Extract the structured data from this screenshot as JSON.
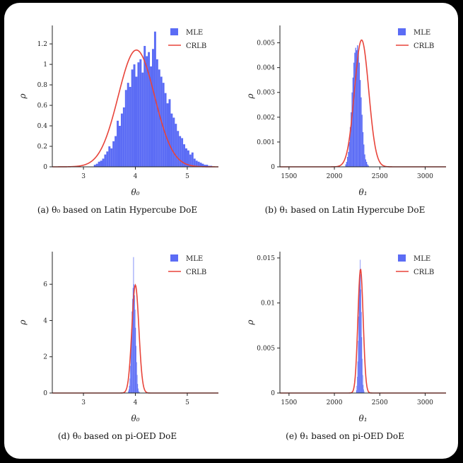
{
  "colors": {
    "mle": "#5b6cf5",
    "crlb": "#e8443a"
  },
  "legend": {
    "mle": "MLE",
    "crlb": "CRLB"
  },
  "chart_data": [
    {
      "id": "a",
      "type": "bar",
      "caption": "(a)  θ₀ based on Latin Hypercube DoE",
      "xlabel": "θ₀",
      "ylabel": "ρ",
      "xlim": [
        2.4,
        5.6
      ],
      "ylim": [
        0,
        1.38
      ],
      "xticks": [
        "3",
        "4",
        "5"
      ],
      "xtick_values": [
        3,
        4,
        5
      ],
      "yticks": [
        "0",
        "0.2",
        "0.4",
        "0.6",
        "0.8",
        "1",
        "1.2"
      ],
      "ytick_values": [
        0,
        0.2,
        0.4,
        0.6,
        0.8,
        1.0,
        1.2
      ],
      "bin_start": 3.2,
      "bin_width": 0.04,
      "values": [
        0.02,
        0.03,
        0.05,
        0.06,
        0.08,
        0.12,
        0.15,
        0.2,
        0.18,
        0.25,
        0.3,
        0.45,
        0.4,
        0.52,
        0.58,
        0.75,
        0.82,
        0.78,
        0.95,
        1.0,
        0.88,
        1.02,
        1.05,
        0.92,
        1.18,
        1.08,
        1.12,
        0.98,
        1.15,
        1.32,
        1.05,
        0.95,
        0.88,
        0.82,
        0.72,
        0.62,
        0.66,
        0.52,
        0.48,
        0.42,
        0.35,
        0.3,
        0.28,
        0.22,
        0.18,
        0.16,
        0.12,
        0.14,
        0.08,
        0.06,
        0.05,
        0.04,
        0.03,
        0.02,
        0.02,
        0.01,
        0.01,
        0,
        0,
        0,
        0,
        0,
        0,
        0,
        0,
        0,
        0,
        0.03
      ],
      "crlb": {
        "mean": 4.02,
        "sd": 0.35
      }
    },
    {
      "id": "b",
      "type": "bar",
      "caption": "(b)  θ₁ based on Latin Hypercube DoE",
      "xlabel": "θ₁",
      "ylabel": "ρ",
      "xlim": [
        1400,
        3230
      ],
      "ylim": [
        0,
        0.0057
      ],
      "xticks": [
        "1500",
        "2000",
        "2500",
        "3000"
      ],
      "xtick_values": [
        1500,
        2000,
        2500,
        3000
      ],
      "yticks": [
        "0",
        "0.001",
        "0.002",
        "0.003",
        "0.004",
        "0.005"
      ],
      "ytick_values": [
        0,
        0.001,
        0.002,
        0.003,
        0.004,
        0.005
      ],
      "bin_start": 2120,
      "bin_width": 10,
      "values": [
        0.0001,
        0.0002,
        0.0004,
        0.0006,
        0.001,
        0.0016,
        0.0022,
        0.003,
        0.0036,
        0.0042,
        0.0046,
        0.0048,
        0.0047,
        0.0049,
        0.0046,
        0.0042,
        0.0035,
        0.0028,
        0.0021,
        0.0014,
        0.0009,
        0.0005,
        0.0003,
        0.0002,
        0.0001,
        5e-05
      ],
      "crlb": {
        "mean": 2300,
        "sd": 78
      }
    },
    {
      "id": "d",
      "type": "bar",
      "caption": "(d)  θ₀ based on pi-OED DoE",
      "xlabel": "θ₀",
      "ylabel": "ρ",
      "xlim": [
        2.4,
        5.6
      ],
      "ylim": [
        0,
        7.8
      ],
      "xticks": [
        "3",
        "4",
        "5"
      ],
      "xtick_values": [
        3,
        4,
        5
      ],
      "yticks": [
        "0",
        "2",
        "4",
        "6"
      ],
      "ytick_values": [
        0,
        2,
        4,
        6
      ],
      "bin_start": 3.86,
      "bin_width": 0.01,
      "values": [
        0.1,
        0.2,
        0.4,
        0.8,
        1.5,
        2.4,
        3.5,
        4.5,
        5.2,
        5.8,
        7.5,
        6.0,
        5.4,
        4.6,
        3.6,
        2.6,
        1.7,
        1.0,
        0.5,
        0.25,
        0.1,
        0.05,
        0.03
      ],
      "crlb": {
        "mean": 4.0,
        "sd": 0.067
      }
    },
    {
      "id": "e",
      "type": "bar",
      "caption": "(e)  θ₁ based on pi-OED DoE",
      "xlabel": "θ₁",
      "ylabel": "ρ",
      "xlim": [
        1400,
        3230
      ],
      "ylim": [
        0,
        0.0157
      ],
      "xticks": [
        "1500",
        "2000",
        "2500",
        "3000"
      ],
      "xtick_values": [
        1500,
        2000,
        2500,
        3000
      ],
      "yticks": [
        "0",
        "0.005",
        "0.01",
        "0.015"
      ],
      "ytick_values": [
        0,
        0.005,
        0.01,
        0.015
      ],
      "bin_start": 2240,
      "bin_width": 5,
      "values": [
        0.0003,
        0.0008,
        0.0018,
        0.0035,
        0.0058,
        0.0085,
        0.011,
        0.0128,
        0.0148,
        0.0132,
        0.0115,
        0.009,
        0.0062,
        0.0038,
        0.002,
        0.0009,
        0.0004,
        0.0002
      ],
      "crlb": {
        "mean": 2288,
        "sd": 29
      }
    }
  ]
}
